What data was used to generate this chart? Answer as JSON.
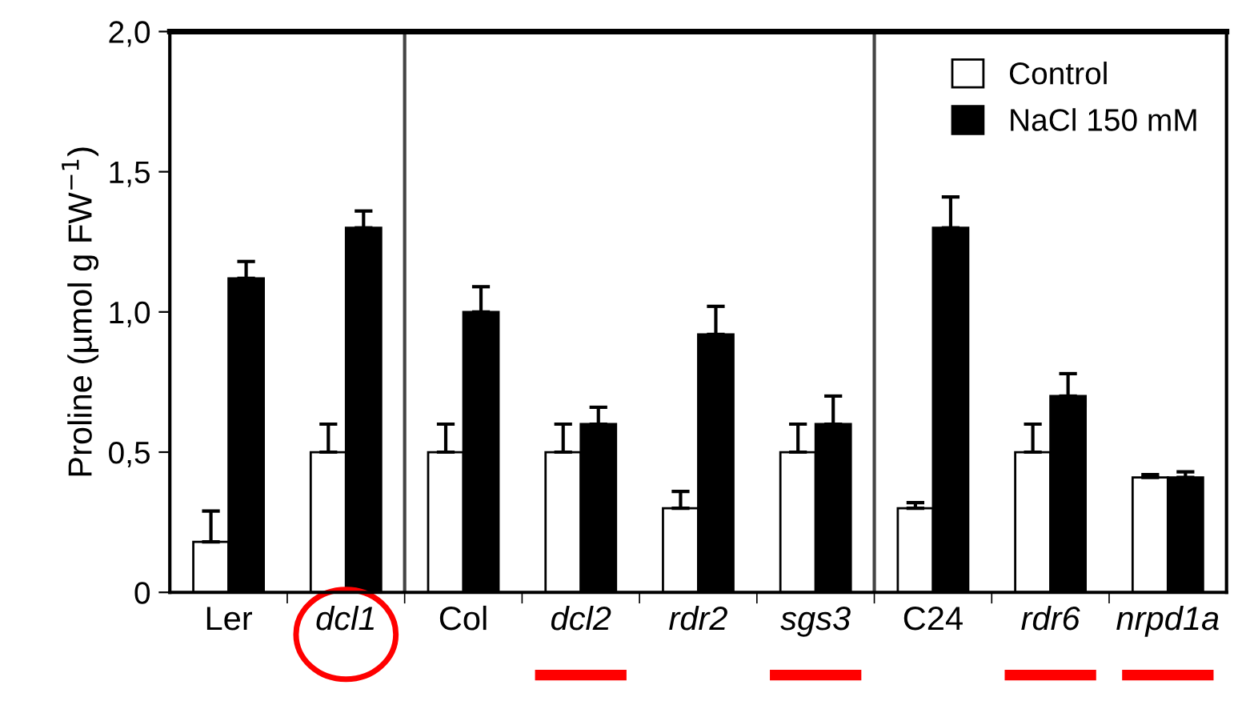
{
  "chart_data": {
    "type": "bar",
    "ylabel": "Proline (µmol g FW$^{−1}$)",
    "categories": [
      "Ler",
      "dcl1",
      "Col",
      "dcl2",
      "rdr2",
      "sgs3",
      "C24",
      "rdr6",
      "nrpd1a"
    ],
    "series": [
      {
        "name": "Control",
        "color": "#ffffff",
        "values": [
          0.18,
          0.5,
          0.5,
          0.5,
          0.3,
          0.5,
          0.3,
          0.5,
          0.41
        ],
        "errors": [
          0.11,
          0.1,
          0.1,
          0.1,
          0.06,
          0.1,
          0.02,
          0.1,
          0.01
        ]
      },
      {
        "name": "NaCl 150 mM",
        "color": "#000000",
        "values": [
          1.12,
          1.3,
          1.0,
          0.6,
          0.92,
          0.6,
          1.3,
          0.7,
          0.41
        ],
        "errors": [
          0.06,
          0.06,
          0.09,
          0.06,
          0.1,
          0.1,
          0.11,
          0.08,
          0.02
        ]
      }
    ],
    "ylim": [
      0,
      2.0
    ],
    "yticks": [
      0,
      {
        "value": 0.5,
        "label": "0,5"
      },
      {
        "value": 1.0,
        "label": "1,0"
      },
      {
        "value": 1.5,
        "label": "1,5"
      },
      {
        "value": 2.0,
        "label": "2,0"
      }
    ],
    "grid": false,
    "legend": "top right"
  }
}
